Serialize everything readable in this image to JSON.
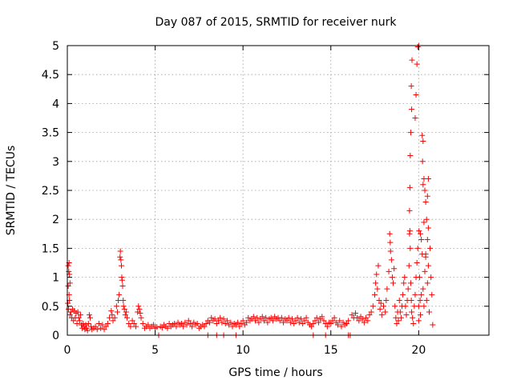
{
  "chart_data": {
    "type": "scatter",
    "title": "Day 087 of 2015, SRMTID for receiver nurk",
    "xlabel": "GPS time / hours",
    "ylabel": "SRMTID / TECUs",
    "xlim": [
      0,
      24
    ],
    "ylim": [
      0,
      5
    ],
    "xticks": [
      0,
      5,
      10,
      15,
      20
    ],
    "xtick_labels": [
      "0",
      "5",
      "10",
      "15",
      "20"
    ],
    "yticks": [
      0,
      0.5,
      1,
      1.5,
      2,
      2.5,
      3,
      3.5,
      4,
      4.5,
      5
    ],
    "ytick_labels": [
      "0",
      "0.5",
      "1",
      "1.5",
      "2",
      "2.5",
      "3",
      "3.5",
      "4",
      "4.5",
      "5"
    ],
    "grid": true,
    "marker": "+",
    "color": "#ff0000",
    "series": [
      {
        "name": "nurk",
        "points": [
          [
            0.05,
            1.2
          ],
          [
            0.08,
            1.1
          ],
          [
            0.1,
            1.25
          ],
          [
            0.12,
            1.05
          ],
          [
            0.15,
            0.9
          ],
          [
            0.05,
            0.85
          ],
          [
            0.1,
            0.7
          ],
          [
            0.03,
            0.55
          ],
          [
            0.07,
            0.45
          ],
          [
            0.12,
            0.6
          ],
          [
            0.15,
            0.35
          ],
          [
            0.2,
            0.4
          ],
          [
            0.25,
            0.3
          ],
          [
            0.3,
            0.45
          ],
          [
            0.35,
            0.25
          ],
          [
            0.4,
            0.42
          ],
          [
            0.45,
            0.3
          ],
          [
            0.5,
            0.38
          ],
          [
            0.55,
            0.2
          ],
          [
            0.6,
            0.4
          ],
          [
            0.65,
            0.3
          ],
          [
            0.7,
            0.25
          ],
          [
            0.75,
            0.35
          ],
          [
            0.8,
            0.18
          ],
          [
            0.85,
            0.12
          ],
          [
            0.9,
            0.2
          ],
          [
            0.95,
            0.15
          ],
          [
            1.0,
            0.1
          ],
          [
            1.05,
            0.18
          ],
          [
            1.1,
            0.12
          ],
          [
            1.15,
            0.08
          ],
          [
            1.2,
            0.2
          ],
          [
            1.25,
            0.35
          ],
          [
            1.3,
            0.3
          ],
          [
            1.35,
            0.15
          ],
          [
            1.4,
            0.1
          ],
          [
            1.5,
            0.12
          ],
          [
            1.6,
            0.15
          ],
          [
            1.7,
            0.1
          ],
          [
            1.8,
            0.2
          ],
          [
            1.9,
            0.12
          ],
          [
            2.0,
            0.18
          ],
          [
            2.1,
            0.1
          ],
          [
            2.2,
            0.15
          ],
          [
            2.3,
            0.2
          ],
          [
            2.4,
            0.3
          ],
          [
            2.5,
            0.42
          ],
          [
            2.55,
            0.35
          ],
          [
            2.6,
            0.25
          ],
          [
            2.7,
            0.3
          ],
          [
            2.8,
            0.5
          ],
          [
            2.85,
            0.4
          ],
          [
            2.9,
            0.6
          ],
          [
            2.95,
            0.7
          ],
          [
            3.0,
            1.35
          ],
          [
            3.02,
            1.45
          ],
          [
            3.05,
            1.3
          ],
          [
            3.08,
            1.2
          ],
          [
            3.1,
            1.0
          ],
          [
            3.12,
            0.95
          ],
          [
            3.15,
            0.85
          ],
          [
            3.18,
            0.6
          ],
          [
            3.2,
            0.5
          ],
          [
            3.25,
            0.45
          ],
          [
            3.3,
            0.35
          ],
          [
            3.35,
            0.4
          ],
          [
            3.4,
            0.3
          ],
          [
            3.5,
            0.2
          ],
          [
            3.6,
            0.15
          ],
          [
            3.7,
            0.25
          ],
          [
            3.8,
            0.2
          ],
          [
            3.9,
            0.15
          ],
          [
            4.0,
            0.4
          ],
          [
            4.05,
            0.5
          ],
          [
            4.1,
            0.45
          ],
          [
            4.15,
            0.38
          ],
          [
            4.2,
            0.3
          ],
          [
            4.3,
            0.2
          ],
          [
            4.4,
            0.12
          ],
          [
            4.5,
            0.15
          ],
          [
            4.6,
            0.18
          ],
          [
            4.7,
            0.12
          ],
          [
            4.8,
            0.15
          ],
          [
            4.9,
            0.18
          ],
          [
            5.0,
            0.12
          ],
          [
            5.1,
            0.14
          ],
          [
            5.2,
            0.0
          ],
          [
            5.3,
            0.15
          ],
          [
            5.4,
            0.13
          ],
          [
            5.5,
            0.18
          ],
          [
            5.6,
            0.15
          ],
          [
            5.7,
            0.12
          ],
          [
            5.8,
            0.2
          ],
          [
            5.9,
            0.15
          ],
          [
            6.0,
            0.18
          ],
          [
            6.1,
            0.2
          ],
          [
            6.2,
            0.15
          ],
          [
            6.3,
            0.22
          ],
          [
            6.4,
            0.18
          ],
          [
            6.5,
            0.2
          ],
          [
            6.6,
            0.15
          ],
          [
            6.7,
            0.22
          ],
          [
            6.8,
            0.18
          ],
          [
            6.9,
            0.25
          ],
          [
            7.0,
            0.2
          ],
          [
            7.1,
            0.15
          ],
          [
            7.2,
            0.22
          ],
          [
            7.3,
            0.18
          ],
          [
            7.4,
            0.2
          ],
          [
            7.5,
            0.12
          ],
          [
            7.6,
            0.15
          ],
          [
            7.7,
            0.18
          ],
          [
            7.8,
            0.15
          ],
          [
            7.9,
            0.2
          ],
          [
            8.0,
            0.0
          ],
          [
            8.0,
            0.25
          ],
          [
            8.1,
            0.22
          ],
          [
            8.2,
            0.3
          ],
          [
            8.3,
            0.25
          ],
          [
            8.4,
            0.28
          ],
          [
            8.5,
            0.0
          ],
          [
            8.5,
            0.2
          ],
          [
            8.6,
            0.25
          ],
          [
            8.7,
            0.3
          ],
          [
            8.8,
            0.22
          ],
          [
            8.9,
            0.0
          ],
          [
            8.9,
            0.28
          ],
          [
            9.0,
            0.2
          ],
          [
            9.1,
            0.25
          ],
          [
            9.2,
            0.18
          ],
          [
            9.3,
            0.22
          ],
          [
            9.4,
            0.15
          ],
          [
            9.5,
            0.2
          ],
          [
            9.6,
            0.0
          ],
          [
            9.6,
            0.18
          ],
          [
            9.7,
            0.22
          ],
          [
            9.8,
            0.15
          ],
          [
            9.9,
            0.2
          ],
          [
            10.0,
            0.25
          ],
          [
            10.1,
            0.18
          ],
          [
            10.2,
            0.22
          ],
          [
            10.3,
            0.3
          ],
          [
            10.4,
            0.25
          ],
          [
            10.5,
            0.28
          ],
          [
            10.6,
            0.32
          ],
          [
            10.7,
            0.25
          ],
          [
            10.8,
            0.3
          ],
          [
            10.9,
            0.22
          ],
          [
            11.0,
            0.28
          ],
          [
            11.1,
            0.32
          ],
          [
            11.2,
            0.25
          ],
          [
            11.3,
            0.3
          ],
          [
            11.4,
            0.22
          ],
          [
            11.5,
            0.28
          ],
          [
            11.6,
            0.3
          ],
          [
            11.7,
            0.25
          ],
          [
            11.8,
            0.32
          ],
          [
            11.9,
            0.28
          ],
          [
            12.0,
            0.3
          ],
          [
            12.1,
            0.25
          ],
          [
            12.2,
            0.3
          ],
          [
            12.3,
            0.22
          ],
          [
            12.4,
            0.28
          ],
          [
            12.5,
            0.25
          ],
          [
            12.6,
            0.3
          ],
          [
            12.7,
            0.22
          ],
          [
            12.8,
            0.28
          ],
          [
            12.9,
            0.2
          ],
          [
            13.0,
            0.25
          ],
          [
            13.1,
            0.3
          ],
          [
            13.2,
            0.22
          ],
          [
            13.3,
            0.28
          ],
          [
            13.4,
            0.2
          ],
          [
            13.5,
            0.25
          ],
          [
            13.6,
            0.3
          ],
          [
            13.7,
            0.22
          ],
          [
            13.8,
            0.18
          ],
          [
            13.9,
            0.15
          ],
          [
            14.0,
            0.0
          ],
          [
            14.0,
            0.2
          ],
          [
            14.1,
            0.25
          ],
          [
            14.2,
            0.3
          ],
          [
            14.3,
            0.22
          ],
          [
            14.4,
            0.28
          ],
          [
            14.5,
            0.32
          ],
          [
            14.6,
            0.25
          ],
          [
            14.7,
            0.0
          ],
          [
            14.7,
            0.2
          ],
          [
            14.8,
            0.15
          ],
          [
            14.9,
            0.22
          ],
          [
            15.0,
            0.2
          ],
          [
            15.1,
            0.25
          ],
          [
            15.2,
            0.3
          ],
          [
            15.3,
            0.22
          ],
          [
            15.4,
            0.18
          ],
          [
            15.5,
            0.25
          ],
          [
            15.6,
            0.15
          ],
          [
            15.7,
            0.22
          ],
          [
            15.8,
            0.18
          ],
          [
            15.9,
            0.2
          ],
          [
            16.0,
            0.0
          ],
          [
            16.1,
            0.0
          ],
          [
            16.0,
            0.25
          ],
          [
            16.2,
            0.35
          ],
          [
            16.3,
            0.3
          ],
          [
            16.4,
            0.38
          ],
          [
            16.5,
            0.3
          ],
          [
            16.6,
            0.25
          ],
          [
            16.7,
            0.32
          ],
          [
            16.8,
            0.28
          ],
          [
            16.9,
            0.22
          ],
          [
            17.0,
            0.3
          ],
          [
            17.1,
            0.25
          ],
          [
            17.2,
            0.35
          ],
          [
            17.3,
            0.4
          ],
          [
            17.4,
            0.5
          ],
          [
            17.5,
            0.7
          ],
          [
            17.55,
            0.9
          ],
          [
            17.6,
            1.05
          ],
          [
            17.65,
            0.8
          ],
          [
            17.7,
            1.2
          ],
          [
            17.75,
            0.6
          ],
          [
            17.8,
            0.45
          ],
          [
            17.85,
            0.55
          ],
          [
            17.9,
            0.35
          ],
          [
            18.0,
            0.5
          ],
          [
            18.1,
            0.4
          ],
          [
            18.15,
            0.6
          ],
          [
            18.2,
            0.8
          ],
          [
            18.3,
            1.1
          ],
          [
            18.35,
            1.75
          ],
          [
            18.38,
            1.6
          ],
          [
            18.4,
            1.45
          ],
          [
            18.45,
            1.3
          ],
          [
            18.5,
            1.0
          ],
          [
            18.55,
            0.9
          ],
          [
            18.6,
            1.15
          ],
          [
            18.65,
            0.5
          ],
          [
            18.7,
            0.3
          ],
          [
            18.75,
            0.2
          ],
          [
            18.8,
            0.4
          ],
          [
            18.85,
            0.25
          ],
          [
            18.9,
            0.6
          ],
          [
            18.95,
            0.4
          ],
          [
            19.0,
            0.3
          ],
          [
            19.05,
            0.5
          ],
          [
            19.1,
            0.7
          ],
          [
            19.15,
            0.9
          ],
          [
            19.2,
            1.0
          ],
          [
            19.25,
            0.5
          ],
          [
            19.3,
            0.35
          ],
          [
            19.35,
            0.6
          ],
          [
            19.4,
            0.8
          ],
          [
            19.45,
            1.2
          ],
          [
            19.48,
            1.75
          ],
          [
            19.5,
            1.8
          ],
          [
            19.52,
            1.5
          ],
          [
            19.55,
            0.9
          ],
          [
            19.58,
            0.6
          ],
          [
            19.6,
            0.4
          ],
          [
            19.65,
            0.3
          ],
          [
            19.7,
            0.2
          ],
          [
            19.75,
            0.5
          ],
          [
            19.8,
            0.7
          ],
          [
            19.85,
            1.0
          ],
          [
            19.9,
            1.25
          ],
          [
            19.95,
            1.5
          ],
          [
            20.0,
            0.5
          ],
          [
            20.0,
            0.25
          ],
          [
            20.02,
            1.8
          ],
          [
            20.05,
            1.0
          ],
          [
            20.08,
            0.6
          ],
          [
            20.1,
            0.35
          ],
          [
            20.15,
            0.7
          ],
          [
            20.2,
            1.4
          ],
          [
            20.25,
            0.8
          ],
          [
            20.3,
            0.5
          ],
          [
            20.35,
            1.1
          ],
          [
            20.4,
            1.4
          ],
          [
            20.45,
            0.6
          ],
          [
            20.5,
            0.9
          ],
          [
            20.55,
            1.2
          ],
          [
            20.6,
            0.4
          ],
          [
            20.65,
            1.5
          ],
          [
            20.7,
            1.0
          ],
          [
            20.75,
            0.7
          ],
          [
            20.8,
            0.18
          ],
          [
            19.5,
            2.55
          ],
          [
            19.48,
            2.15
          ],
          [
            19.52,
            3.1
          ],
          [
            19.55,
            3.5
          ],
          [
            19.6,
            3.9
          ],
          [
            19.58,
            4.3
          ],
          [
            19.62,
            4.75
          ],
          [
            19.85,
            4.15
          ],
          [
            19.8,
            3.75
          ],
          [
            19.9,
            4.68
          ],
          [
            19.95,
            4.98
          ],
          [
            20.0,
            5.0
          ],
          [
            20.2,
            3.45
          ],
          [
            20.25,
            3.35
          ],
          [
            20.22,
            3.0
          ],
          [
            20.3,
            2.7
          ],
          [
            20.35,
            2.5
          ],
          [
            20.4,
            2.3
          ],
          [
            20.45,
            2.0
          ],
          [
            20.55,
            2.7
          ],
          [
            20.5,
            2.4
          ],
          [
            20.25,
            2.6
          ],
          [
            20.3,
            1.95
          ],
          [
            20.1,
            1.75
          ],
          [
            20.15,
            1.65
          ],
          [
            20.5,
            1.65
          ],
          [
            20.55,
            1.85
          ],
          [
            20.4,
            1.35
          ]
        ]
      }
    ]
  }
}
